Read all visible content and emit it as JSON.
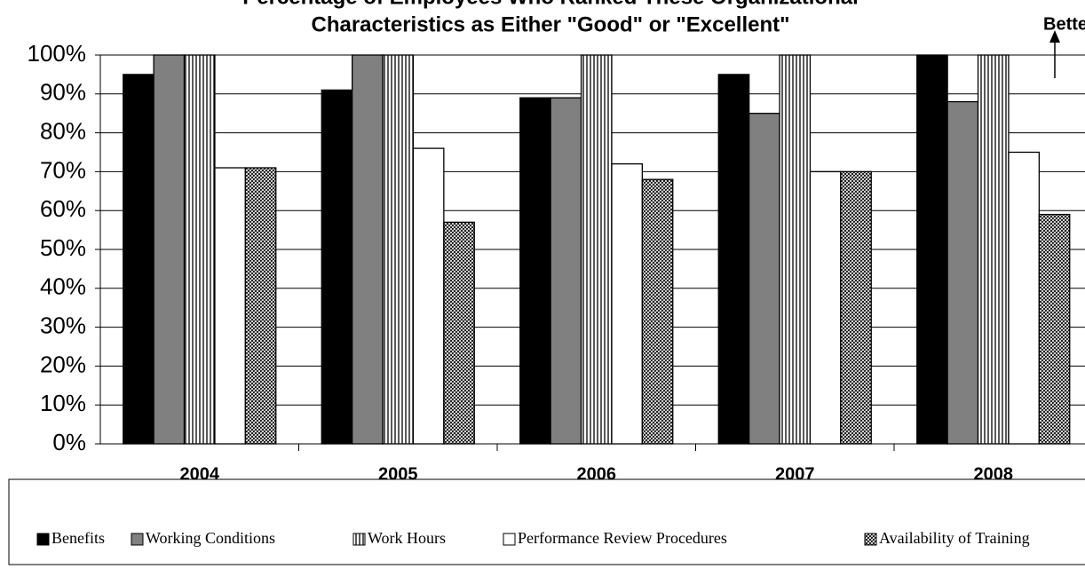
{
  "chart_data": {
    "type": "bar",
    "title": [
      "Percentage of Employees Who Ranked These Organizational",
      "Characteristics as Either \"Good\" or \"Excellent\""
    ],
    "annotation": "Better",
    "categories": [
      "2004",
      "2005",
      "2006",
      "2007",
      "2008"
    ],
    "series": [
      {
        "name": "Benefits",
        "color": "#000000",
        "pattern": "solid",
        "values": [
          95,
          91,
          89,
          95,
          100
        ]
      },
      {
        "name": "Working Conditions",
        "color": "#808080",
        "pattern": "solid",
        "values": [
          100,
          100,
          89,
          85,
          88
        ]
      },
      {
        "name": "Work Hours",
        "color": "#ffffff",
        "pattern": "vertical-lines",
        "values": [
          100,
          100,
          100,
          100,
          100
        ]
      },
      {
        "name": "Performance Review Procedures",
        "color": "#ffffff",
        "pattern": "solid",
        "values": [
          71,
          76,
          72,
          70,
          75
        ]
      },
      {
        "name": "Availability of Training",
        "color": "#ffffff",
        "pattern": "crosshatch",
        "values": [
          71,
          57,
          68,
          70,
          59
        ]
      }
    ],
    "ylim": [
      0,
      100
    ],
    "yticks": [
      {
        "value": 0,
        "label": "0%"
      },
      {
        "value": 10,
        "label": "10%"
      },
      {
        "value": 20,
        "label": "20%"
      },
      {
        "value": 30,
        "label": "30%"
      },
      {
        "value": 40,
        "label": "40%"
      },
      {
        "value": 50,
        "label": "50%"
      },
      {
        "value": 60,
        "label": "60%"
      },
      {
        "value": 70,
        "label": "70%"
      },
      {
        "value": 80,
        "label": "80%"
      },
      {
        "value": 90,
        "label": "90%"
      },
      {
        "value": 100,
        "label": "100%"
      }
    ],
    "grid": true,
    "legend": "bottom"
  }
}
